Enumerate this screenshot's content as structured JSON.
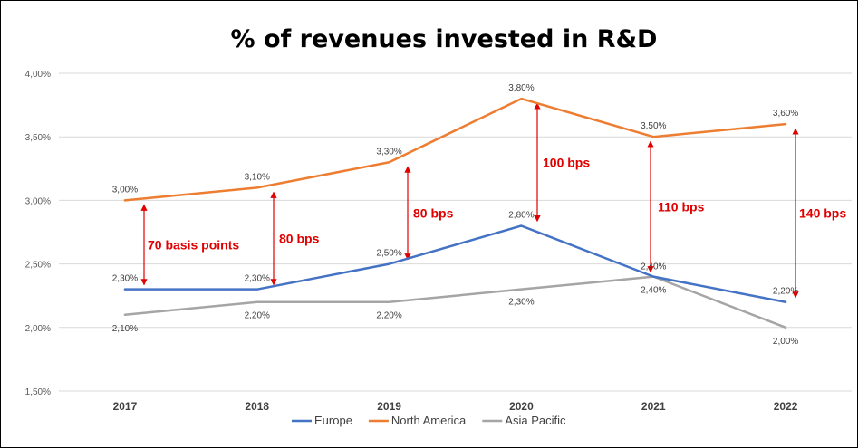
{
  "chart_data": {
    "type": "line",
    "title": "% of revenues invested in R&D",
    "xlabel": "",
    "ylabel": "",
    "categories": [
      "2017",
      "2018",
      "2019",
      "2020",
      "2021",
      "2022"
    ],
    "ylim": [
      1.5,
      4.0
    ],
    "yticks": [
      "1,50%",
      "2,00%",
      "2,50%",
      "3,00%",
      "3,50%",
      "4,00%"
    ],
    "grid": true,
    "legend_position": "bottom",
    "series": [
      {
        "name": "Europe",
        "color": "#4472c4",
        "values": [
          2.3,
          2.3,
          2.5,
          2.8,
          2.4,
          2.2
        ],
        "labels": [
          "2,30%",
          "2,30%",
          "2,50%",
          "2,80%",
          "2,40%",
          "2,20%"
        ]
      },
      {
        "name": "North America",
        "color": "#ed7d31",
        "values": [
          3.0,
          3.1,
          3.3,
          3.8,
          3.5,
          3.6
        ],
        "labels": [
          "3,00%",
          "3,10%",
          "3,30%",
          "3,80%",
          "3,50%",
          "3,60%"
        ]
      },
      {
        "name": "Asia Pacific",
        "color": "#a5a5a5",
        "values": [
          2.1,
          2.2,
          2.2,
          2.3,
          2.4,
          2.0
        ],
        "labels": [
          "2,10%",
          "2,20%",
          "2,20%",
          "2,30%",
          "2,40%",
          "2,00%"
        ]
      }
    ],
    "annotations": [
      {
        "text": "70 basis points",
        "category": "2017",
        "from": 2.3,
        "to": 3.0
      },
      {
        "text": "80 bps",
        "category": "2018",
        "from": 2.3,
        "to": 3.1
      },
      {
        "text": "80 bps",
        "category": "2019",
        "from": 2.5,
        "to": 3.3
      },
      {
        "text": "100 bps",
        "category": "2020",
        "from": 2.8,
        "to": 3.8
      },
      {
        "text": "110 bps",
        "category": "2021",
        "from": 2.4,
        "to": 3.5
      },
      {
        "text": "140 bps",
        "category": "2022",
        "from": 2.2,
        "to": 3.6
      }
    ],
    "annotation_color": "#e00000"
  }
}
